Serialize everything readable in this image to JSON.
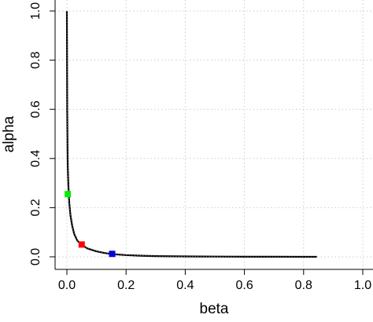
{
  "chart_data": {
    "type": "line",
    "title": "",
    "xlabel": "beta",
    "ylabel": "alpha",
    "xlim": [
      0,
      1
    ],
    "ylim": [
      0,
      1
    ],
    "x_ticks": [
      "0.0",
      "0.2",
      "0.4",
      "0.6",
      "0.8",
      "1.0"
    ],
    "y_ticks": [
      "0.0",
      "0.2",
      "0.4",
      "0.6",
      "0.8",
      "1.0"
    ],
    "grid": true,
    "series": [
      {
        "line_color": "#000000",
        "points": [
          {
            "x": 0.0,
            "y": 1.0
          },
          {
            "x": 0.001,
            "y": 0.6
          },
          {
            "x": 0.002,
            "y": 0.45
          },
          {
            "x": 0.003,
            "y": 0.37
          },
          {
            "x": 0.005,
            "y": 0.29
          },
          {
            "x": 0.008,
            "y": 0.22
          },
          {
            "x": 0.012,
            "y": 0.17
          },
          {
            "x": 0.018,
            "y": 0.125
          },
          {
            "x": 0.025,
            "y": 0.092
          },
          {
            "x": 0.035,
            "y": 0.066
          },
          {
            "x": 0.05,
            "y": 0.048
          },
          {
            "x": 0.07,
            "y": 0.034
          },
          {
            "x": 0.1,
            "y": 0.022
          },
          {
            "x": 0.13,
            "y": 0.015
          },
          {
            "x": 0.155,
            "y": 0.011
          },
          {
            "x": 0.2,
            "y": 0.007
          },
          {
            "x": 0.25,
            "y": 0.0045
          },
          {
            "x": 0.3,
            "y": 0.003
          },
          {
            "x": 0.4,
            "y": 0.0015
          },
          {
            "x": 0.5,
            "y": 0.0008
          },
          {
            "x": 0.6,
            "y": 0.0004
          },
          {
            "x": 0.7,
            "y": 0.0002
          },
          {
            "x": 0.8,
            "y": 0.0001
          },
          {
            "x": 0.845,
            "y": 0.0
          }
        ]
      }
    ],
    "markers": [
      {
        "x": 0.003,
        "y": 0.255,
        "color": "#00ee00"
      },
      {
        "x": 0.05,
        "y": 0.05,
        "color": "#ff0000"
      },
      {
        "x": 0.153,
        "y": 0.012,
        "color": "#0000dd"
      }
    ]
  },
  "colors": {
    "grid": "#cccccc",
    "axis": "#000000",
    "background": "#ffffff"
  }
}
